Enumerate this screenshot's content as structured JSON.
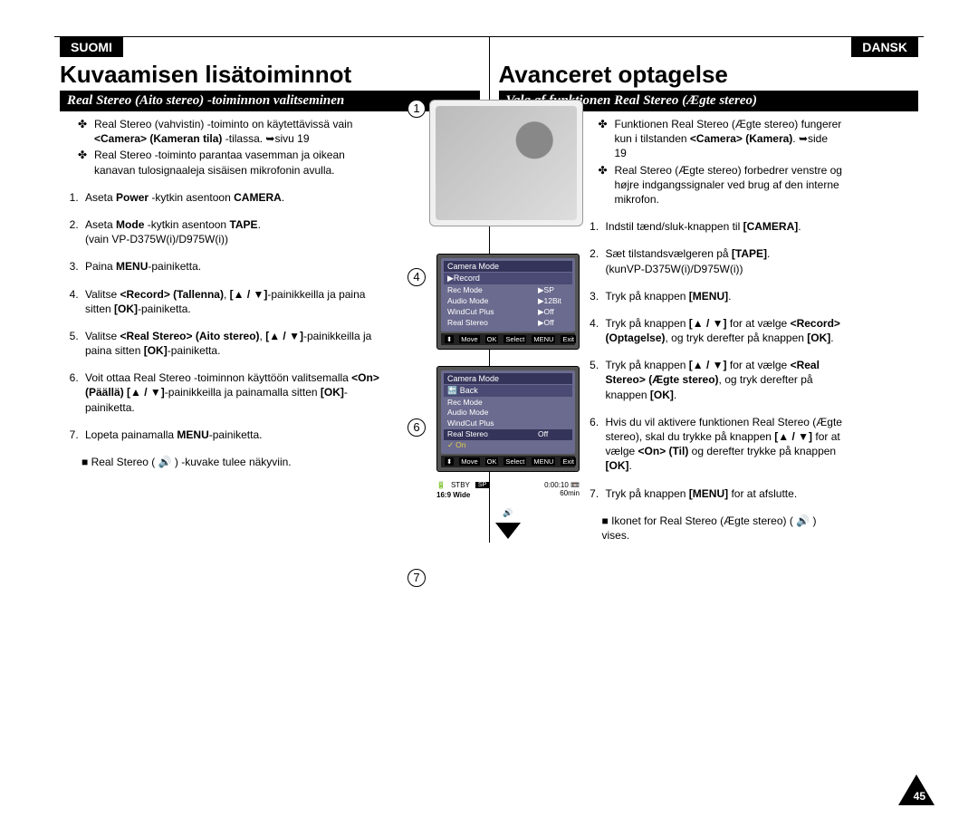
{
  "left": {
    "lang": "SUOMI",
    "title": "Kuvaamisen lisätoiminnot",
    "subtitle": "Real Stereo (Aito stereo) -toiminnon valitseminen",
    "bullets": [
      "Real Stereo (vahvistin) -toiminto on käytettävissä vain <b>&lt;Camera&gt; (Kameran tila)</b> -tilassa. ➥sivu 19",
      "Real Stereo -toiminto parantaa vasemman ja oikean kanavan tulosignaaleja sisäisen mikrofonin avulla."
    ],
    "steps": [
      "Aseta <b>Power</b> -kytkin asentoon <b>CAMERA</b>.",
      "Aseta <b>Mode</b> -kytkin asentoon <b>TAPE</b>.<br>(vain VP-D375W(i)/D975W(i))",
      "Paina <b>MENU</b>-painiketta.",
      "Valitse <b>&lt;Record&gt; (Tallenna)</b>, <b>[▲ / ▼]</b>-painikkeilla ja paina sitten <b>[OK]</b>-painiketta.",
      "Valitse <b>&lt;Real Stereo&gt; (Aito stereo)</b>, <b>[▲ / ▼]</b>-painikkeilla ja paina sitten <b>[OK]</b>-painiketta.",
      "Voit ottaa Real Stereo -toiminnon käyttöön valitsemalla <b>&lt;On&gt; (Päällä) [▲ / ▼]</b>-painikkeilla ja painamalla sitten <b>[OK]</b>-painiketta.",
      "Lopeta painamalla <b>MENU</b>-painiketta."
    ],
    "sub": "Real Stereo ( 🔊 ) -kuvake tulee näkyviin."
  },
  "right": {
    "lang": "DANSK",
    "title": "Avanceret optagelse",
    "subtitle": "Valg af funktionen Real Stereo (Ægte stereo)",
    "bullets": [
      "Funktionen Real Stereo (Ægte stereo) fungerer kun i tilstanden <b>&lt;Camera&gt; (Kamera)</b>. ➥side 19",
      "Real Stereo (Ægte stereo) forbedrer venstre og højre indgangssignaler ved brug af den interne mikrofon."
    ],
    "steps": [
      "Indstil tænd/sluk-knappen til <b>[CAMERA]</b>.",
      "Sæt tilstandsvælgeren på <b>[TAPE]</b>.<br>(kunVP-D375W(i)/D975W(i))",
      "Tryk på knappen <b>[MENU]</b>.",
      "Tryk på knappen <b>[▲ / ▼]</b> for at vælge <b>&lt;Record&gt; (Optagelse)</b>, og tryk derefter på knappen <b>[OK]</b>.",
      "Tryk på knappen <b>[▲ / ▼]</b> for at vælge <b>&lt;Real Stereo&gt; (Ægte stereo)</b>, og tryk derefter på knappen <b>[OK]</b>.",
      "Hvis du vil aktivere funktionen Real Stereo (Ægte stereo), skal du trykke på knappen <b>[▲ / ▼]</b> for at vælge <b>&lt;On&gt; (Til)</b> og derefter trykke på knappen <b>[OK]</b>.",
      "Tryk på knappen <b>[MENU]</b> for at afslutte."
    ],
    "sub": "Ikonet for Real Stereo (Ægte stereo) ( 🔊 ) vises."
  },
  "fig": {
    "step_labels": [
      "1",
      "4",
      "6",
      "7"
    ],
    "lcd4": {
      "title": "Camera Mode",
      "sub": "▶Record",
      "rows": [
        {
          "l": "Rec Mode",
          "r": "▶SP"
        },
        {
          "l": "Audio Mode",
          "r": "▶12Bit"
        },
        {
          "l": "WindCut Plus",
          "r": "▶Off"
        },
        {
          "l": "Real Stereo",
          "r": "▶Off"
        }
      ],
      "footer": {
        "move": "Move",
        "select": "Select",
        "exit": "Exit",
        "ok": "OK",
        "menu": "MENU"
      }
    },
    "lcd6": {
      "title": "Camera Mode",
      "sub": "🔙 Back",
      "rows": [
        {
          "l": "Rec Mode",
          "r": ""
        },
        {
          "l": "Audio Mode",
          "r": ""
        },
        {
          "l": "WindCut Plus",
          "r": ""
        },
        {
          "l": "Real Stereo",
          "r": "Off",
          "sel": true
        },
        {
          "l": "On",
          "r": "",
          "check": true
        }
      ],
      "footer": {
        "move": "Move",
        "select": "Select",
        "exit": "Exit",
        "ok": "OK",
        "menu": "MENU"
      }
    },
    "stby": {
      "stby": "STBY",
      "sp": "SP",
      "time": "0:00:10",
      "tape": "📼",
      "batt": "🔋",
      "remain": "60min",
      "wide": "16:9 Wide"
    }
  },
  "page_number": "45"
}
